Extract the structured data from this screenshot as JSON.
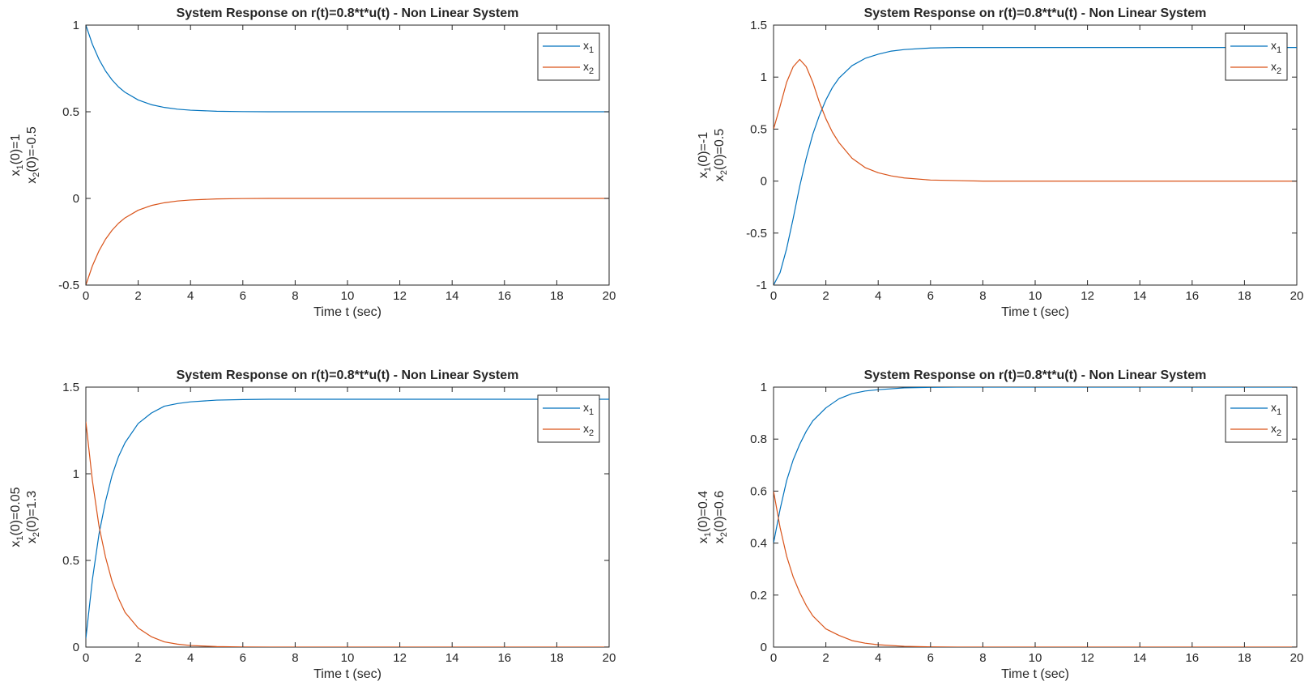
{
  "figure": {
    "type": "subplots",
    "rows": 2,
    "cols": 2
  },
  "colors": {
    "x1": "#0072BD",
    "x2": "#D95319",
    "axis": "#262626"
  },
  "chart_data": [
    {
      "type": "line",
      "title": "System Response on r(t)=0.8*t*u(t) - Non Linear System",
      "xlabel": "Time t (sec)",
      "ylabel_lines": [
        {
          "base": "x",
          "sub": "1",
          "rest": "(0)=1"
        },
        {
          "base": "x",
          "sub": "2",
          "rest": "(0)=-0.5"
        }
      ],
      "xlim": [
        0,
        20
      ],
      "ylim": [
        -0.5,
        1
      ],
      "xticks": [
        "0",
        "2",
        "4",
        "6",
        "8",
        "10",
        "12",
        "14",
        "16",
        "18",
        "20"
      ],
      "yticks": [
        "-0.5",
        "0",
        "0.5",
        "1"
      ],
      "grid": false,
      "legend_position": "top-right",
      "series": [
        {
          "name": "x1",
          "legend_base": "x",
          "legend_sub": "1",
          "color": "#0072BD",
          "x": [
            0,
            0.25,
            0.5,
            0.75,
            1,
            1.25,
            1.5,
            2,
            2.5,
            3,
            3.5,
            4,
            5,
            6,
            7,
            8,
            10,
            12,
            14,
            16,
            18,
            20
          ],
          "y": [
            1,
            0.889,
            0.803,
            0.736,
            0.684,
            0.643,
            0.612,
            0.568,
            0.541,
            0.525,
            0.515,
            0.509,
            0.503,
            0.501,
            0.5,
            0.5,
            0.5,
            0.5,
            0.5,
            0.5,
            0.5,
            0.5
          ]
        },
        {
          "name": "x2",
          "legend_base": "x",
          "legend_sub": "2",
          "color": "#D95319",
          "x": [
            0,
            0.25,
            0.5,
            0.75,
            1,
            1.25,
            1.5,
            2,
            2.5,
            3,
            3.5,
            4,
            5,
            6,
            7,
            8,
            10,
            12,
            14,
            16,
            18,
            20
          ],
          "y": [
            -0.5,
            -0.389,
            -0.303,
            -0.236,
            -0.184,
            -0.143,
            -0.112,
            -0.068,
            -0.041,
            -0.025,
            -0.015,
            -0.009,
            -0.003,
            -0.001,
            0,
            0,
            0,
            0,
            0,
            0,
            0,
            0
          ]
        }
      ]
    },
    {
      "type": "line",
      "title": "System Response on r(t)=0.8*t*u(t) - Non Linear System",
      "xlabel": "Time t (sec)",
      "ylabel_lines": [
        {
          "base": "x",
          "sub": "1",
          "rest": "(0)=-1"
        },
        {
          "base": "x",
          "sub": "2",
          "rest": "(0)=0.5"
        }
      ],
      "xlim": [
        0,
        20
      ],
      "ylim": [
        -1,
        1.5
      ],
      "xticks": [
        "0",
        "2",
        "4",
        "6",
        "8",
        "10",
        "12",
        "14",
        "16",
        "18",
        "20"
      ],
      "yticks": [
        "-1",
        "-0.5",
        "0",
        "0.5",
        "1",
        "1.5"
      ],
      "grid": false,
      "legend_position": "top-right",
      "series": [
        {
          "name": "x1",
          "legend_base": "x",
          "legend_sub": "1",
          "color": "#0072BD",
          "x": [
            0,
            0.25,
            0.5,
            0.75,
            1,
            1.25,
            1.5,
            1.75,
            2,
            2.25,
            2.5,
            3,
            3.5,
            4,
            4.5,
            5,
            6,
            7,
            8,
            10,
            12,
            14,
            16,
            18,
            20
          ],
          "y": [
            -1,
            -0.88,
            -0.65,
            -0.36,
            -0.05,
            0.22,
            0.45,
            0.63,
            0.78,
            0.9,
            0.99,
            1.11,
            1.18,
            1.22,
            1.25,
            1.265,
            1.28,
            1.285,
            1.285,
            1.285,
            1.285,
            1.285,
            1.285,
            1.285,
            1.285
          ]
        },
        {
          "name": "x2",
          "legend_base": "x",
          "legend_sub": "2",
          "color": "#D95319",
          "x": [
            0,
            0.25,
            0.5,
            0.75,
            1,
            1.25,
            1.5,
            1.75,
            2,
            2.25,
            2.5,
            3,
            3.5,
            4,
            4.5,
            5,
            6,
            7,
            8,
            10,
            12,
            14,
            16,
            18,
            20
          ],
          "y": [
            0.5,
            0.72,
            0.95,
            1.1,
            1.17,
            1.1,
            0.95,
            0.76,
            0.6,
            0.47,
            0.37,
            0.22,
            0.13,
            0.08,
            0.05,
            0.03,
            0.01,
            0.005,
            0,
            0,
            0,
            0,
            0,
            0,
            0
          ]
        }
      ]
    },
    {
      "type": "line",
      "title": "System Response on r(t)=0.8*t*u(t) - Non Linear System",
      "xlabel": "Time t (sec)",
      "ylabel_lines": [
        {
          "base": "x",
          "sub": "1",
          "rest": "(0)=0.05"
        },
        {
          "base": "x",
          "sub": "2",
          "rest": "(0)=1.3"
        }
      ],
      "xlim": [
        0,
        20
      ],
      "ylim": [
        0,
        1.5
      ],
      "xticks": [
        "0",
        "2",
        "4",
        "6",
        "8",
        "10",
        "12",
        "14",
        "16",
        "18",
        "20"
      ],
      "yticks": [
        "0",
        "0.5",
        "1",
        "1.5"
      ],
      "grid": false,
      "legend_position": "top-right",
      "series": [
        {
          "name": "x1",
          "legend_base": "x",
          "legend_sub": "1",
          "color": "#0072BD",
          "x": [
            0,
            0.25,
            0.5,
            0.75,
            1,
            1.25,
            1.5,
            2,
            2.5,
            3,
            3.5,
            4,
            5,
            6,
            7,
            8,
            10,
            12,
            14,
            16,
            18,
            20
          ],
          "y": [
            0.05,
            0.39,
            0.65,
            0.84,
            0.99,
            1.1,
            1.18,
            1.29,
            1.35,
            1.39,
            1.405,
            1.415,
            1.425,
            1.428,
            1.43,
            1.43,
            1.43,
            1.43,
            1.43,
            1.43,
            1.43,
            1.43
          ]
        },
        {
          "name": "x2",
          "legend_base": "x",
          "legend_sub": "2",
          "color": "#D95319",
          "x": [
            0,
            0.25,
            0.5,
            0.75,
            1,
            1.25,
            1.5,
            2,
            2.5,
            3,
            3.5,
            4,
            5,
            6,
            7,
            8,
            10,
            12,
            14,
            16,
            18,
            20
          ],
          "y": [
            1.3,
            0.96,
            0.7,
            0.52,
            0.38,
            0.28,
            0.2,
            0.11,
            0.06,
            0.03,
            0.017,
            0.009,
            0.003,
            0.001,
            0,
            0,
            0,
            0,
            0,
            0,
            0,
            0
          ]
        }
      ]
    },
    {
      "type": "line",
      "title": "System Response on r(t)=0.8*t*u(t) - Non Linear System",
      "xlabel": "Time t (sec)",
      "ylabel_lines": [
        {
          "base": "x",
          "sub": "1",
          "rest": "(0)=0.4"
        },
        {
          "base": "x",
          "sub": "2",
          "rest": "(0)=0.6"
        }
      ],
      "xlim": [
        0,
        20
      ],
      "ylim": [
        0,
        1
      ],
      "xticks": [
        "0",
        "2",
        "4",
        "6",
        "8",
        "10",
        "12",
        "14",
        "16",
        "18",
        "20"
      ],
      "yticks": [
        "0",
        "0.2",
        "0.4",
        "0.6",
        "0.8",
        "1"
      ],
      "grid": false,
      "legend_position": "top-right",
      "series": [
        {
          "name": "x1",
          "legend_base": "x",
          "legend_sub": "1",
          "color": "#0072BD",
          "x": [
            0,
            0.25,
            0.5,
            0.75,
            1,
            1.25,
            1.5,
            2,
            2.5,
            3,
            3.5,
            4,
            5,
            6,
            7,
            8,
            10,
            12,
            14,
            16,
            18,
            20
          ],
          "y": [
            0.4,
            0.53,
            0.64,
            0.72,
            0.78,
            0.83,
            0.87,
            0.92,
            0.955,
            0.975,
            0.985,
            0.99,
            0.997,
            0.999,
            1,
            1,
            1,
            1,
            1,
            1,
            1,
            1
          ]
        },
        {
          "name": "x2",
          "legend_base": "x",
          "legend_sub": "2",
          "color": "#D95319",
          "x": [
            0,
            0.25,
            0.5,
            0.75,
            1,
            1.25,
            1.5,
            2,
            2.5,
            3,
            3.5,
            4,
            5,
            6,
            7,
            8,
            10,
            12,
            14,
            16,
            18,
            20
          ],
          "y": [
            0.6,
            0.46,
            0.35,
            0.27,
            0.21,
            0.16,
            0.12,
            0.07,
            0.045,
            0.025,
            0.015,
            0.009,
            0.003,
            0.001,
            0,
            0,
            0,
            0,
            0,
            0,
            0,
            0
          ]
        }
      ]
    }
  ]
}
